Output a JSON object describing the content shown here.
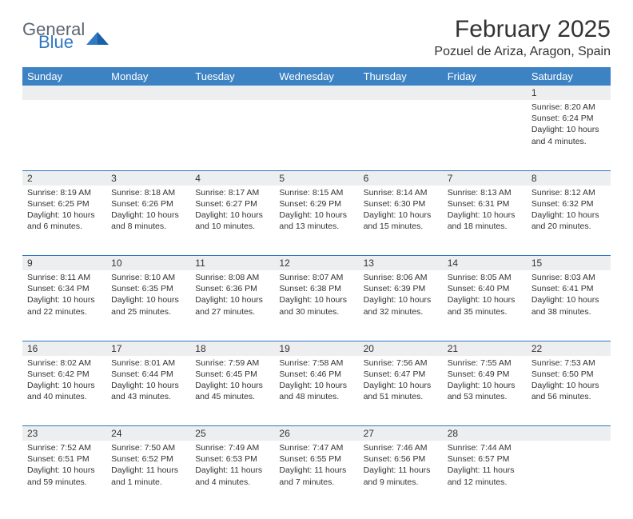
{
  "brand": {
    "part1": "General",
    "part2": "Blue"
  },
  "title": "February 2025",
  "location": "Pozuel de Ariza, Aragon, Spain",
  "colors": {
    "header_bg": "#3d83c4",
    "header_text": "#ffffff",
    "daynum_bg": "#eceeef",
    "border": "#2f78c3",
    "logo_gray": "#5c6670",
    "logo_blue": "#2f78c3"
  },
  "day_labels": [
    "Sunday",
    "Monday",
    "Tuesday",
    "Wednesday",
    "Thursday",
    "Friday",
    "Saturday"
  ],
  "weeks": [
    [
      null,
      null,
      null,
      null,
      null,
      null,
      {
        "n": "1",
        "sunrise": "8:20 AM",
        "sunset": "6:24 PM",
        "daylight": "10 hours and 4 minutes."
      }
    ],
    [
      {
        "n": "2",
        "sunrise": "8:19 AM",
        "sunset": "6:25 PM",
        "daylight": "10 hours and 6 minutes."
      },
      {
        "n": "3",
        "sunrise": "8:18 AM",
        "sunset": "6:26 PM",
        "daylight": "10 hours and 8 minutes."
      },
      {
        "n": "4",
        "sunrise": "8:17 AM",
        "sunset": "6:27 PM",
        "daylight": "10 hours and 10 minutes."
      },
      {
        "n": "5",
        "sunrise": "8:15 AM",
        "sunset": "6:29 PM",
        "daylight": "10 hours and 13 minutes."
      },
      {
        "n": "6",
        "sunrise": "8:14 AM",
        "sunset": "6:30 PM",
        "daylight": "10 hours and 15 minutes."
      },
      {
        "n": "7",
        "sunrise": "8:13 AM",
        "sunset": "6:31 PM",
        "daylight": "10 hours and 18 minutes."
      },
      {
        "n": "8",
        "sunrise": "8:12 AM",
        "sunset": "6:32 PM",
        "daylight": "10 hours and 20 minutes."
      }
    ],
    [
      {
        "n": "9",
        "sunrise": "8:11 AM",
        "sunset": "6:34 PM",
        "daylight": "10 hours and 22 minutes."
      },
      {
        "n": "10",
        "sunrise": "8:10 AM",
        "sunset": "6:35 PM",
        "daylight": "10 hours and 25 minutes."
      },
      {
        "n": "11",
        "sunrise": "8:08 AM",
        "sunset": "6:36 PM",
        "daylight": "10 hours and 27 minutes."
      },
      {
        "n": "12",
        "sunrise": "8:07 AM",
        "sunset": "6:38 PM",
        "daylight": "10 hours and 30 minutes."
      },
      {
        "n": "13",
        "sunrise": "8:06 AM",
        "sunset": "6:39 PM",
        "daylight": "10 hours and 32 minutes."
      },
      {
        "n": "14",
        "sunrise": "8:05 AM",
        "sunset": "6:40 PM",
        "daylight": "10 hours and 35 minutes."
      },
      {
        "n": "15",
        "sunrise": "8:03 AM",
        "sunset": "6:41 PM",
        "daylight": "10 hours and 38 minutes."
      }
    ],
    [
      {
        "n": "16",
        "sunrise": "8:02 AM",
        "sunset": "6:42 PM",
        "daylight": "10 hours and 40 minutes."
      },
      {
        "n": "17",
        "sunrise": "8:01 AM",
        "sunset": "6:44 PM",
        "daylight": "10 hours and 43 minutes."
      },
      {
        "n": "18",
        "sunrise": "7:59 AM",
        "sunset": "6:45 PM",
        "daylight": "10 hours and 45 minutes."
      },
      {
        "n": "19",
        "sunrise": "7:58 AM",
        "sunset": "6:46 PM",
        "daylight": "10 hours and 48 minutes."
      },
      {
        "n": "20",
        "sunrise": "7:56 AM",
        "sunset": "6:47 PM",
        "daylight": "10 hours and 51 minutes."
      },
      {
        "n": "21",
        "sunrise": "7:55 AM",
        "sunset": "6:49 PM",
        "daylight": "10 hours and 53 minutes."
      },
      {
        "n": "22",
        "sunrise": "7:53 AM",
        "sunset": "6:50 PM",
        "daylight": "10 hours and 56 minutes."
      }
    ],
    [
      {
        "n": "23",
        "sunrise": "7:52 AM",
        "sunset": "6:51 PM",
        "daylight": "10 hours and 59 minutes."
      },
      {
        "n": "24",
        "sunrise": "7:50 AM",
        "sunset": "6:52 PM",
        "daylight": "11 hours and 1 minute."
      },
      {
        "n": "25",
        "sunrise": "7:49 AM",
        "sunset": "6:53 PM",
        "daylight": "11 hours and 4 minutes."
      },
      {
        "n": "26",
        "sunrise": "7:47 AM",
        "sunset": "6:55 PM",
        "daylight": "11 hours and 7 minutes."
      },
      {
        "n": "27",
        "sunrise": "7:46 AM",
        "sunset": "6:56 PM",
        "daylight": "11 hours and 9 minutes."
      },
      {
        "n": "28",
        "sunrise": "7:44 AM",
        "sunset": "6:57 PM",
        "daylight": "11 hours and 12 minutes."
      },
      null
    ]
  ],
  "labels": {
    "sunrise": "Sunrise:",
    "sunset": "Sunset:",
    "daylight": "Daylight:"
  }
}
